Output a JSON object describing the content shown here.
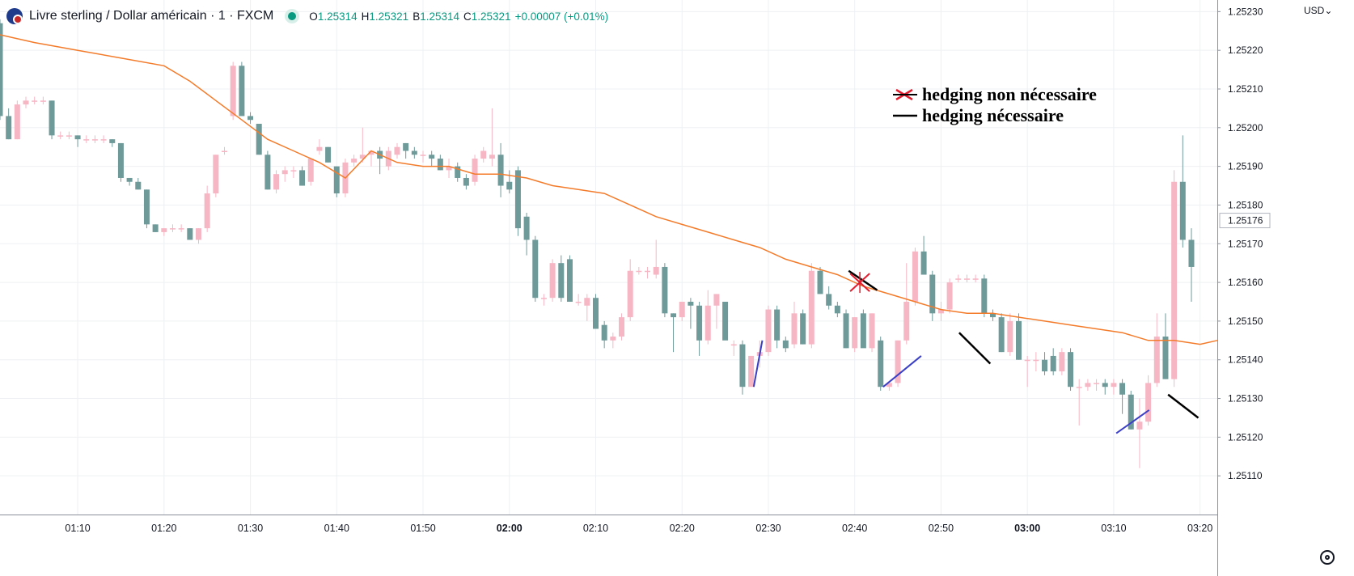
{
  "header": {
    "symbol_title": "Livre sterling / Dollar américain · 1 · FXCM",
    "o_label": "O",
    "o_value": "1.25314",
    "h_label": "H",
    "h_value": "1.25321",
    "b_label": "B",
    "b_value": "1.25314",
    "c_label": "C",
    "c_value": "1.25321",
    "change": "+0.00007 (+0.01%)"
  },
  "currency_label": "USD",
  "currency_chevron": "chevron-down-icon",
  "legend": [
    {
      "symbol": "red-x-icon",
      "label": "hedging non nécessaire"
    },
    {
      "symbol": "black-line-icon",
      "label": "hedging nécessaire"
    }
  ],
  "colors": {
    "up": "#F7B6C4",
    "down": "#6F9A9A",
    "ma": "#F47B2A",
    "grid": "#EEF0F3",
    "axis_text": "#131722",
    "blue_annot": "#3B3FC6",
    "black_annot": "#000000",
    "red_annot": "#E11D2E"
  },
  "chart_data": {
    "type": "candlestick",
    "title": "Livre sterling / Dollar américain · 1 · FXCM",
    "ylim": [
      1.251,
      1.25233
    ],
    "yticks": [
      "1.25110",
      "1.25120",
      "1.25130",
      "1.25140",
      "1.25150",
      "1.25160",
      "1.25170",
      "1.25180",
      "1.25190",
      "1.25200",
      "1.25210",
      "1.25220",
      "1.25230"
    ],
    "current_price": "1.25176",
    "xlim_minutes": [
      61,
      202
    ],
    "xticks": [
      {
        "m": 70,
        "label": "01:10",
        "bold": false
      },
      {
        "m": 80,
        "label": "01:20",
        "bold": false
      },
      {
        "m": 90,
        "label": "01:30",
        "bold": false
      },
      {
        "m": 100,
        "label": "01:40",
        "bold": false
      },
      {
        "m": 110,
        "label": "01:50",
        "bold": false
      },
      {
        "m": 120,
        "label": "02:00",
        "bold": true
      },
      {
        "m": 130,
        "label": "02:10",
        "bold": false
      },
      {
        "m": 140,
        "label": "02:20",
        "bold": false
      },
      {
        "m": 150,
        "label": "02:30",
        "bold": false
      },
      {
        "m": 160,
        "label": "02:40",
        "bold": false
      },
      {
        "m": 170,
        "label": "02:50",
        "bold": false
      },
      {
        "m": 180,
        "label": "03:00",
        "bold": true
      },
      {
        "m": 190,
        "label": "03:10",
        "bold": false
      },
      {
        "m": 200,
        "label": "03:20",
        "bold": false
      }
    ],
    "candles_ohlc": [
      [
        1.25227,
        1.25228,
        1.25202,
        1.25203
      ],
      [
        1.25203,
        1.25205,
        1.25197,
        1.25197
      ],
      [
        1.25197,
        1.25207,
        1.25197,
        1.25206
      ],
      [
        1.25206,
        1.25208,
        1.25205,
        1.25207
      ],
      [
        1.25207,
        1.25208,
        1.25206,
        1.25207
      ],
      [
        1.25207,
        1.25208,
        1.25206,
        1.25207
      ],
      [
        1.25207,
        1.25207,
        1.25197,
        1.25198
      ],
      [
        1.25198,
        1.25199,
        1.25197,
        1.25198
      ],
      [
        1.25198,
        1.25199,
        1.25197,
        1.25198
      ],
      [
        1.25198,
        1.25198,
        1.25195,
        1.25197
      ],
      [
        1.25197,
        1.25198,
        1.25196,
        1.25197
      ],
      [
        1.25197,
        1.25198,
        1.25196,
        1.25197
      ],
      [
        1.25197,
        1.25198,
        1.25196,
        1.25197
      ],
      [
        1.25197,
        1.25197,
        1.25195,
        1.25196
      ],
      [
        1.25196,
        1.25196,
        1.25186,
        1.25187
      ],
      [
        1.25187,
        1.25187,
        1.25185,
        1.25186
      ],
      [
        1.25186,
        1.25187,
        1.25184,
        1.25184
      ],
      [
        1.25184,
        1.25184,
        1.25174,
        1.25175
      ],
      [
        1.25175,
        1.25175,
        1.25173,
        1.25173
      ],
      [
        1.25173,
        1.25174,
        1.25172,
        1.25174
      ],
      [
        1.25174,
        1.25175,
        1.25173,
        1.25174
      ],
      [
        1.25174,
        1.25175,
        1.25173,
        1.25174
      ],
      [
        1.25174,
        1.25174,
        1.25171,
        1.25171
      ],
      [
        1.25171,
        1.25174,
        1.2517,
        1.25174
      ],
      [
        1.25174,
        1.25185,
        1.25173,
        1.25183
      ],
      [
        1.25183,
        1.25193,
        1.25182,
        1.25193
      ],
      [
        1.25194,
        1.25195,
        1.25193,
        1.25194
      ],
      [
        1.25203,
        1.25217,
        1.25202,
        1.25216
      ],
      [
        1.25216,
        1.25217,
        1.25203,
        1.25203
      ],
      [
        1.25203,
        1.25204,
        1.25201,
        1.25202
      ],
      [
        1.25201,
        1.25201,
        1.25193,
        1.25193
      ],
      [
        1.25193,
        1.25194,
        1.25184,
        1.25184
      ],
      [
        1.25184,
        1.25189,
        1.25183,
        1.25188
      ],
      [
        1.25188,
        1.2519,
        1.25186,
        1.25189
      ],
      [
        1.25189,
        1.2519,
        1.25187,
        1.25189
      ],
      [
        1.25189,
        1.2519,
        1.25185,
        1.25185
      ],
      [
        1.25186,
        1.25192,
        1.25185,
        1.25192
      ],
      [
        1.25194,
        1.25197,
        1.25193,
        1.25195
      ],
      [
        1.25195,
        1.25195,
        1.25191,
        1.25191
      ],
      [
        1.2519,
        1.2519,
        1.25182,
        1.25183
      ],
      [
        1.25183,
        1.25192,
        1.25182,
        1.25191
      ],
      [
        1.25191,
        1.25193,
        1.2519,
        1.25192
      ],
      [
        1.25192,
        1.252,
        1.25191,
        1.25193
      ],
      [
        1.25193,
        1.25194,
        1.2519,
        1.25194
      ],
      [
        1.25194,
        1.25195,
        1.25188,
        1.25192
      ],
      [
        1.2519,
        1.25195,
        1.25189,
        1.25194
      ],
      [
        1.25193,
        1.25196,
        1.25192,
        1.25195
      ],
      [
        1.25196,
        1.25196,
        1.25192,
        1.25194
      ],
      [
        1.25194,
        1.25195,
        1.25192,
        1.25193
      ],
      [
        1.25193,
        1.25194,
        1.25191,
        1.25193
      ],
      [
        1.25193,
        1.25194,
        1.2519,
        1.25192
      ],
      [
        1.25192,
        1.25193,
        1.25189,
        1.25189
      ],
      [
        1.25189,
        1.25192,
        1.25187,
        1.2519
      ],
      [
        1.2519,
        1.25191,
        1.25186,
        1.25187
      ],
      [
        1.25187,
        1.25188,
        1.25184,
        1.25185
      ],
      [
        1.25186,
        1.25193,
        1.25185,
        1.25192
      ],
      [
        1.25192,
        1.25195,
        1.25191,
        1.25194
      ],
      [
        1.25192,
        1.25205,
        1.2519,
        1.25193
      ],
      [
        1.25193,
        1.25196,
        1.25182,
        1.25185
      ],
      [
        1.25186,
        1.25189,
        1.25183,
        1.25184
      ],
      [
        1.25189,
        1.2519,
        1.25172,
        1.25174
      ],
      [
        1.25177,
        1.25178,
        1.25167,
        1.25171
      ],
      [
        1.25171,
        1.25172,
        1.25155,
        1.25156
      ],
      [
        1.25156,
        1.25157,
        1.25154,
        1.25156
      ],
      [
        1.25156,
        1.25166,
        1.25155,
        1.25165
      ],
      [
        1.25165,
        1.25167,
        1.25155,
        1.25156
      ],
      [
        1.25166,
        1.25167,
        1.25155,
        1.25155
      ],
      [
        1.25155,
        1.25157,
        1.25154,
        1.25155
      ],
      [
        1.25154,
        1.25157,
        1.2515,
        1.25156
      ],
      [
        1.25156,
        1.25157,
        1.25148,
        1.25148
      ],
      [
        1.25149,
        1.2515,
        1.25143,
        1.25145
      ],
      [
        1.25145,
        1.25147,
        1.25143,
        1.25146
      ],
      [
        1.25146,
        1.25152,
        1.25145,
        1.25151
      ],
      [
        1.25151,
        1.25166,
        1.2515,
        1.25163
      ],
      [
        1.25163,
        1.25164,
        1.25162,
        1.25163
      ],
      [
        1.25163,
        1.25164,
        1.25161,
        1.25163
      ],
      [
        1.25162,
        1.25171,
        1.25161,
        1.25164
      ],
      [
        1.25164,
        1.25165,
        1.25151,
        1.25152
      ],
      [
        1.25152,
        1.25152,
        1.25142,
        1.25151
      ],
      [
        1.25151,
        1.25155,
        1.2515,
        1.25155
      ],
      [
        1.25155,
        1.25156,
        1.25148,
        1.25154
      ],
      [
        1.25154,
        1.25155,
        1.25141,
        1.25145
      ],
      [
        1.25145,
        1.25158,
        1.25144,
        1.25154
      ],
      [
        1.25154,
        1.25157,
        1.25148,
        1.25157
      ],
      [
        1.25155,
        1.25155,
        1.25146,
        1.25145
      ],
      [
        1.25144,
        1.25145,
        1.25141,
        1.25144
      ],
      [
        1.25144,
        1.25145,
        1.25131,
        1.25133
      ],
      [
        1.25133,
        1.25141,
        1.25133,
        1.25141
      ],
      [
        1.25141,
        1.25145,
        1.25138,
        1.25142
      ],
      [
        1.25142,
        1.25154,
        1.25141,
        1.25153
      ],
      [
        1.25153,
        1.25154,
        1.25143,
        1.25145
      ],
      [
        1.25145,
        1.25146,
        1.25142,
        1.25143
      ],
      [
        1.25144,
        1.25155,
        1.25143,
        1.25152
      ],
      [
        1.25152,
        1.25153,
        1.25144,
        1.25144
      ],
      [
        1.25144,
        1.25165,
        1.25143,
        1.25163
      ],
      [
        1.25163,
        1.25164,
        1.25157,
        1.25157
      ],
      [
        1.25157,
        1.25159,
        1.25153,
        1.25154
      ],
      [
        1.25154,
        1.25155,
        1.25151,
        1.25152
      ],
      [
        1.25152,
        1.25153,
        1.25143,
        1.25143
      ],
      [
        1.25143,
        1.25151,
        1.25142,
        1.25151
      ],
      [
        1.25152,
        1.25153,
        1.25145,
        1.25143
      ],
      [
        1.25143,
        1.25152,
        1.25142,
        1.25152
      ],
      [
        1.25145,
        1.25146,
        1.25132,
        1.25133
      ],
      [
        1.25133,
        1.25134,
        1.25132,
        1.25134
      ],
      [
        1.25134,
        1.25145,
        1.25133,
        1.25145
      ],
      [
        1.25145,
        1.25165,
        1.25144,
        1.25155
      ],
      [
        1.25155,
        1.25169,
        1.25154,
        1.25168
      ],
      [
        1.25168,
        1.25172,
        1.25162,
        1.25162
      ],
      [
        1.25162,
        1.25163,
        1.2515,
        1.25152
      ],
      [
        1.25152,
        1.25155,
        1.2515,
        1.25153
      ],
      [
        1.25153,
        1.25161,
        1.25152,
        1.2516
      ],
      [
        1.25161,
        1.25162,
        1.2516,
        1.25161
      ],
      [
        1.25161,
        1.25162,
        1.2516,
        1.25161
      ],
      [
        1.25161,
        1.25162,
        1.2516,
        1.25161
      ],
      [
        1.25161,
        1.25162,
        1.25151,
        1.25152
      ],
      [
        1.25152,
        1.25153,
        1.2515,
        1.25151
      ],
      [
        1.25151,
        1.25152,
        1.25142,
        1.25142
      ],
      [
        1.25142,
        1.25152,
        1.25141,
        1.2515
      ],
      [
        1.2515,
        1.25152,
        1.2514,
        1.2514
      ],
      [
        1.2514,
        1.25141,
        1.25133,
        1.2514
      ],
      [
        1.2514,
        1.25142,
        1.25137,
        1.2514
      ],
      [
        1.2514,
        1.25142,
        1.25136,
        1.25137
      ],
      [
        1.25141,
        1.25143,
        1.25136,
        1.25137
      ],
      [
        1.25137,
        1.25143,
        1.25136,
        1.25142
      ],
      [
        1.25142,
        1.25143,
        1.25132,
        1.25133
      ],
      [
        1.25133,
        1.25135,
        1.25123,
        1.25133
      ],
      [
        1.25133,
        1.25135,
        1.25132,
        1.25134
      ],
      [
        1.25134,
        1.25135,
        1.25132,
        1.25134
      ],
      [
        1.25134,
        1.25135,
        1.25131,
        1.25133
      ],
      [
        1.25133,
        1.25135,
        1.25131,
        1.25134
      ],
      [
        1.25134,
        1.25135,
        1.25126,
        1.25131
      ],
      [
        1.25131,
        1.25132,
        1.25122,
        1.25122
      ],
      [
        1.25122,
        1.2513,
        1.25112,
        1.25124
      ],
      [
        1.25124,
        1.25136,
        1.25123,
        1.25134
      ],
      [
        1.25134,
        1.25152,
        1.25133,
        1.25146
      ],
      [
        1.25146,
        1.25152,
        1.25135,
        1.25135
      ],
      [
        1.25135,
        1.25189,
        1.25133,
        1.25186
      ],
      [
        1.25186,
        1.25198,
        1.25169,
        1.25171
      ],
      [
        1.25171,
        1.25174,
        1.25155,
        1.25164
      ]
    ],
    "moving_average": [
      [
        61,
        1.25224
      ],
      [
        65,
        1.25222
      ],
      [
        70,
        1.2522
      ],
      [
        75,
        1.25218
      ],
      [
        80,
        1.25216
      ],
      [
        83,
        1.25212
      ],
      [
        86,
        1.25207
      ],
      [
        89,
        1.25202
      ],
      [
        92,
        1.25197
      ],
      [
        95,
        1.25194
      ],
      [
        98,
        1.25191
      ],
      [
        101,
        1.25187
      ],
      [
        104,
        1.25194
      ],
      [
        107,
        1.25191
      ],
      [
        110,
        1.2519
      ],
      [
        113,
        1.2519
      ],
      [
        116,
        1.25188
      ],
      [
        119,
        1.25188
      ],
      [
        122,
        1.25187
      ],
      [
        125,
        1.25185
      ],
      [
        128,
        1.25184
      ],
      [
        131,
        1.25183
      ],
      [
        134,
        1.2518
      ],
      [
        137,
        1.25177
      ],
      [
        140,
        1.25175
      ],
      [
        143,
        1.25173
      ],
      [
        146,
        1.25171
      ],
      [
        149,
        1.25169
      ],
      [
        152,
        1.25166
      ],
      [
        155,
        1.25164
      ],
      [
        158,
        1.25162
      ],
      [
        161,
        1.25159
      ],
      [
        164,
        1.25157
      ],
      [
        167,
        1.25155
      ],
      [
        170,
        1.25153
      ],
      [
        173,
        1.25152
      ],
      [
        176,
        1.25152
      ],
      [
        179,
        1.25151
      ],
      [
        182,
        1.2515
      ],
      [
        185,
        1.25149
      ],
      [
        188,
        1.25148
      ],
      [
        191,
        1.25147
      ],
      [
        194,
        1.25145
      ],
      [
        197,
        1.25145
      ],
      [
        200,
        1.25144
      ],
      [
        202,
        1.25145
      ]
    ],
    "annotations": {
      "blue_lines": [
        [
          [
            148.3,
            1.25133
          ],
          [
            149.3,
            1.25145
          ]
        ],
        [
          [
            163.3,
            1.25133
          ],
          [
            167.7,
            1.25141
          ]
        ],
        [
          [
            190.3,
            1.25121
          ],
          [
            194.1,
            1.25127
          ]
        ]
      ],
      "black_lines": [
        [
          [
            159.3,
            1.25163
          ],
          [
            162.6,
            1.25158
          ]
        ],
        [
          [
            172.1,
            1.25147
          ],
          [
            175.7,
            1.25139
          ]
        ],
        [
          [
            196.3,
            1.25131
          ],
          [
            199.8,
            1.25125
          ]
        ]
      ],
      "red_x": [
        [
          160.6,
          1.2516
        ]
      ]
    }
  }
}
